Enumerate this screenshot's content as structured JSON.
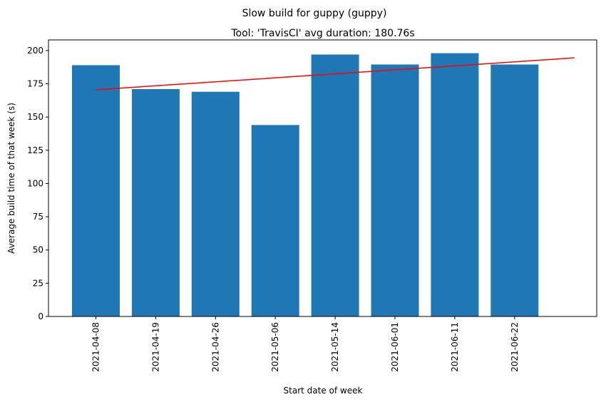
{
  "figure": {
    "suptitle": "Slow build for guppy (guppy)"
  },
  "chart_data": {
    "type": "bar",
    "title": "Tool: 'TravisCI' avg duration: 180.76s",
    "xlabel": "Start date of week",
    "ylabel": "Average build time of that week (s)",
    "categories": [
      "2021-04-08",
      "2021-04-19",
      "2021-04-26",
      "2021-05-06",
      "2021-05-14",
      "2021-06-01",
      "2021-06-11",
      "2021-06-22"
    ],
    "values": [
      189,
      171,
      169,
      144,
      197,
      189.5,
      198,
      189.5
    ],
    "ylim": [
      0,
      208
    ],
    "yticks": [
      0,
      25,
      50,
      75,
      100,
      125,
      150,
      175,
      200
    ],
    "bar_color": "#1f77b4",
    "trendline": {
      "color": "#ff0000",
      "start": {
        "index": 0,
        "value": 170.5
      },
      "end": {
        "index": 8,
        "value": 194.5
      }
    },
    "grid": false,
    "legend": "none"
  }
}
